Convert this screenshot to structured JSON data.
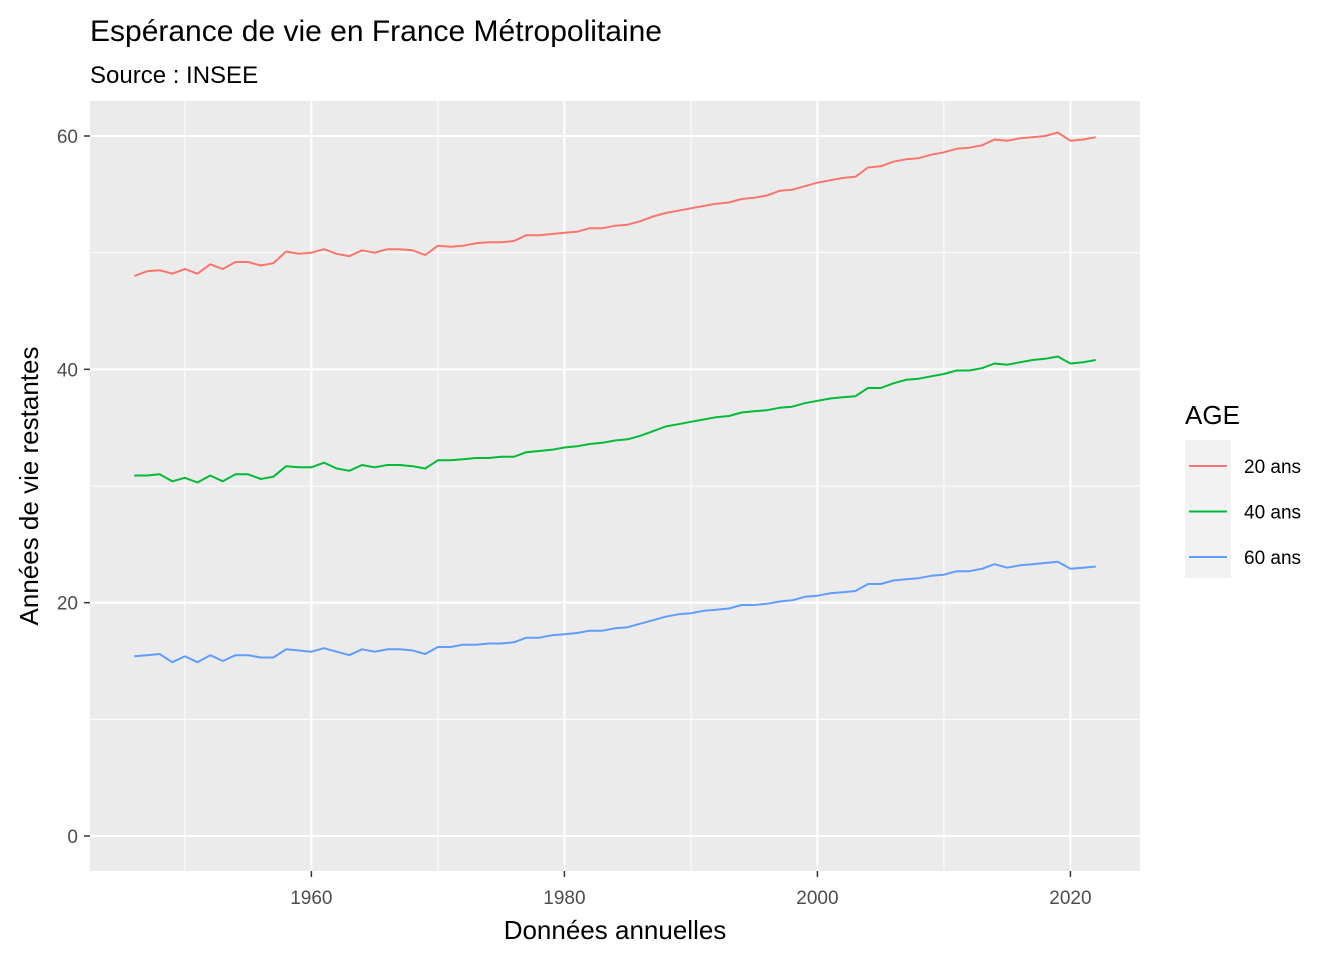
{
  "chart_data": {
    "type": "line",
    "title": "Espérance de vie en France Métropolitaine",
    "subtitle": "Source : INSEE",
    "xlabel": "Données annuelles",
    "ylabel": "Années de vie restantes",
    "xlim": [
      1942.5,
      2025.5
    ],
    "ylim": [
      -3,
      63
    ],
    "x_ticks": [
      1960,
      1980,
      2000,
      2020
    ],
    "y_ticks": [
      0,
      20,
      40,
      60
    ],
    "grid": true,
    "legend": {
      "title": "AGE",
      "position": "right"
    },
    "x": [
      1946,
      1947,
      1948,
      1949,
      1950,
      1951,
      1952,
      1953,
      1954,
      1955,
      1956,
      1957,
      1958,
      1959,
      1960,
      1961,
      1962,
      1963,
      1964,
      1965,
      1966,
      1967,
      1968,
      1969,
      1970,
      1971,
      1972,
      1973,
      1974,
      1975,
      1976,
      1977,
      1978,
      1979,
      1980,
      1981,
      1982,
      1983,
      1984,
      1985,
      1986,
      1987,
      1988,
      1989,
      1990,
      1991,
      1992,
      1993,
      1994,
      1995,
      1996,
      1997,
      1998,
      1999,
      2000,
      2001,
      2002,
      2003,
      2004,
      2005,
      2006,
      2007,
      2008,
      2009,
      2010,
      2011,
      2012,
      2013,
      2014,
      2015,
      2016,
      2017,
      2018,
      2019,
      2020,
      2021,
      2022
    ],
    "series": [
      {
        "name": "20 ans",
        "color": "#F8766D",
        "values": [
          48.0,
          48.4,
          48.5,
          48.2,
          48.6,
          48.2,
          49.0,
          48.6,
          49.2,
          49.2,
          48.9,
          49.1,
          50.1,
          49.9,
          50.0,
          50.3,
          49.9,
          49.7,
          50.2,
          50.0,
          50.3,
          50.3,
          50.2,
          49.8,
          50.6,
          50.5,
          50.6,
          50.8,
          50.9,
          50.9,
          51.0,
          51.5,
          51.5,
          51.6,
          51.7,
          51.8,
          52.1,
          52.1,
          52.3,
          52.4,
          52.7,
          53.1,
          53.4,
          53.6,
          53.8,
          54.0,
          54.2,
          54.3,
          54.6,
          54.7,
          54.9,
          55.3,
          55.4,
          55.7,
          56.0,
          56.2,
          56.4,
          56.5,
          57.3,
          57.4,
          57.8,
          58.0,
          58.1,
          58.4,
          58.6,
          58.9,
          59.0,
          59.2,
          59.7,
          59.6,
          59.8,
          59.9,
          60.0,
          60.3,
          59.6,
          59.7,
          59.9
        ]
      },
      {
        "name": "40 ans",
        "color": "#00BA38",
        "values": [
          30.9,
          30.9,
          31.0,
          30.4,
          30.7,
          30.3,
          30.9,
          30.4,
          31.0,
          31.0,
          30.6,
          30.8,
          31.7,
          31.6,
          31.6,
          32.0,
          31.5,
          31.3,
          31.8,
          31.6,
          31.8,
          31.8,
          31.7,
          31.5,
          32.2,
          32.2,
          32.3,
          32.4,
          32.4,
          32.5,
          32.5,
          32.9,
          33.0,
          33.1,
          33.3,
          33.4,
          33.6,
          33.7,
          33.9,
          34.0,
          34.3,
          34.7,
          35.1,
          35.3,
          35.5,
          35.7,
          35.9,
          36.0,
          36.3,
          36.4,
          36.5,
          36.7,
          36.8,
          37.1,
          37.3,
          37.5,
          37.6,
          37.7,
          38.4,
          38.4,
          38.8,
          39.1,
          39.2,
          39.4,
          39.6,
          39.9,
          39.9,
          40.1,
          40.5,
          40.4,
          40.6,
          40.8,
          40.9,
          41.1,
          40.5,
          40.6,
          40.8
        ]
      },
      {
        "name": "60 ans",
        "color": "#619CFF",
        "values": [
          15.4,
          15.5,
          15.6,
          14.9,
          15.4,
          14.9,
          15.5,
          15.0,
          15.5,
          15.5,
          15.3,
          15.3,
          16.0,
          15.9,
          15.8,
          16.1,
          15.8,
          15.5,
          16.0,
          15.8,
          16.0,
          16.0,
          15.9,
          15.6,
          16.2,
          16.2,
          16.4,
          16.4,
          16.5,
          16.5,
          16.6,
          17.0,
          17.0,
          17.2,
          17.3,
          17.4,
          17.6,
          17.6,
          17.8,
          17.9,
          18.2,
          18.5,
          18.8,
          19.0,
          19.1,
          19.3,
          19.4,
          19.5,
          19.8,
          19.8,
          19.9,
          20.1,
          20.2,
          20.5,
          20.6,
          20.8,
          20.9,
          21.0,
          21.6,
          21.6,
          21.9,
          22.0,
          22.1,
          22.3,
          22.4,
          22.7,
          22.7,
          22.9,
          23.3,
          23.0,
          23.2,
          23.3,
          23.4,
          23.5,
          22.9,
          23.0,
          23.1
        ]
      }
    ]
  }
}
